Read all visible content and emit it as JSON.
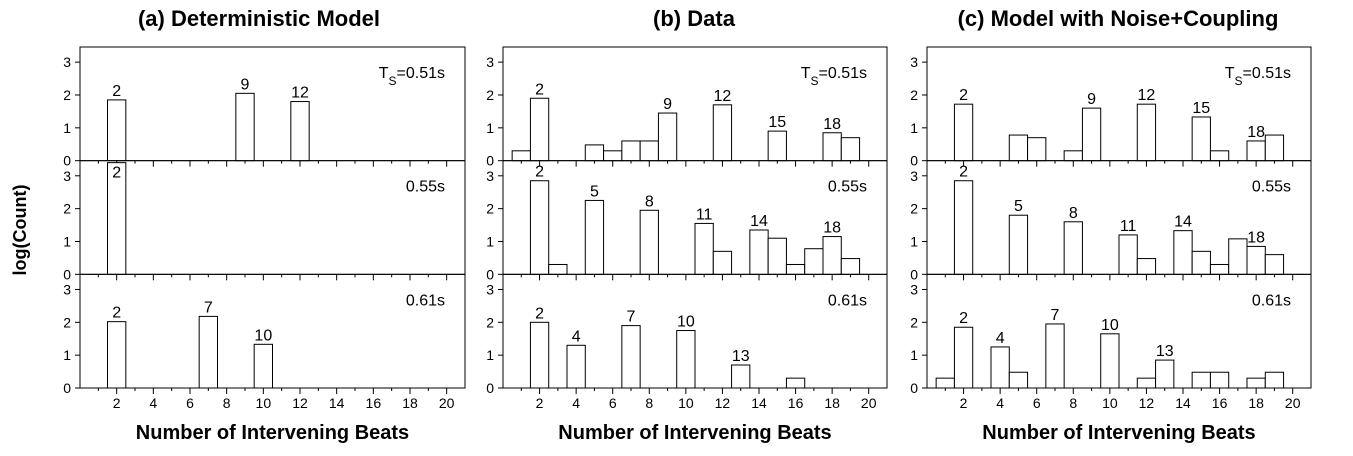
{
  "figure": {
    "ylabel": "log(Count)"
  },
  "chart_data": [
    {
      "type": "bar",
      "title": "(a) Deterministic Model",
      "xlabel": "Number of Intervening Beats",
      "ylabel": "log(Count)",
      "xlim": [
        0,
        21
      ],
      "xticks": [
        2,
        4,
        6,
        8,
        10,
        12,
        14,
        16,
        18,
        20
      ],
      "ylim": [
        0,
        3.4
      ],
      "yticks": [
        0,
        1,
        2,
        3
      ],
      "bar_width": 1,
      "panels": [
        {
          "ts_prefix": "T",
          "ts_sub": "S",
          "ts_value": "=0.51s",
          "x": [
            2,
            9,
            12
          ],
          "values": [
            1.85,
            2.05,
            1.8
          ],
          "annotations": [
            {
              "x": 2,
              "text": "2"
            },
            {
              "x": 9,
              "text": "9"
            },
            {
              "x": 12,
              "text": "12"
            }
          ]
        },
        {
          "ts_prefix": "",
          "ts_sub": "",
          "ts_value": "0.55s",
          "x": [
            2
          ],
          "values": [
            3.4
          ],
          "annotations": [
            {
              "x": 2,
              "text": "2",
              "inside": true
            }
          ]
        },
        {
          "ts_prefix": "",
          "ts_sub": "",
          "ts_value": "0.61s",
          "x": [
            2,
            7,
            10
          ],
          "values": [
            2.02,
            2.18,
            1.33
          ],
          "annotations": [
            {
              "x": 2,
              "text": "2"
            },
            {
              "x": 7,
              "text": "7"
            },
            {
              "x": 10,
              "text": "10"
            }
          ]
        }
      ]
    },
    {
      "type": "bar",
      "title": "(b)  Data",
      "xlabel": "Number of Intervening Beats",
      "ylabel": "",
      "xlim": [
        0,
        21
      ],
      "xticks": [
        2,
        4,
        6,
        8,
        10,
        12,
        14,
        16,
        18,
        20
      ],
      "ylim": [
        0,
        3.4
      ],
      "yticks": [
        0,
        1,
        2,
        3
      ],
      "bar_width": 1,
      "panels": [
        {
          "ts_prefix": "T",
          "ts_sub": "S",
          "ts_value": "=0.51s",
          "x": [
            1,
            2,
            5,
            6,
            7,
            8,
            9,
            12,
            15,
            18,
            19
          ],
          "values": [
            0.3,
            1.9,
            0.48,
            0.3,
            0.6,
            0.6,
            1.45,
            1.7,
            0.9,
            0.85,
            0.7
          ],
          "annotations": [
            {
              "x": 2,
              "text": "2"
            },
            {
              "x": 9,
              "text": "9"
            },
            {
              "x": 12,
              "text": "12"
            },
            {
              "x": 15,
              "text": "15"
            },
            {
              "x": 18,
              "text": "18"
            }
          ]
        },
        {
          "ts_prefix": "",
          "ts_sub": "",
          "ts_value": "0.55s",
          "x": [
            2,
            3,
            5,
            8,
            11,
            12,
            14,
            15,
            16,
            17,
            18,
            19
          ],
          "values": [
            2.85,
            0.3,
            2.25,
            1.95,
            1.55,
            0.7,
            1.35,
            1.1,
            0.3,
            0.78,
            1.15,
            0.48
          ],
          "annotations": [
            {
              "x": 2,
              "text": "2"
            },
            {
              "x": 5,
              "text": "5"
            },
            {
              "x": 8,
              "text": "8"
            },
            {
              "x": 11,
              "text": "11"
            },
            {
              "x": 14,
              "text": "14"
            },
            {
              "x": 18,
              "text": "18"
            }
          ]
        },
        {
          "ts_prefix": "",
          "ts_sub": "",
          "ts_value": "0.61s",
          "x": [
            2,
            4,
            7,
            10,
            13,
            16
          ],
          "values": [
            2.0,
            1.3,
            1.9,
            1.75,
            0.7,
            0.3
          ],
          "annotations": [
            {
              "x": 2,
              "text": "2"
            },
            {
              "x": 4,
              "text": "4"
            },
            {
              "x": 7,
              "text": "7"
            },
            {
              "x": 10,
              "text": "10"
            },
            {
              "x": 13,
              "text": "13"
            }
          ]
        }
      ]
    },
    {
      "type": "bar",
      "title": "(c) Model with Noise+Coupling",
      "xlabel": "Number of Intervening Beats",
      "ylabel": "",
      "xlim": [
        0,
        21
      ],
      "xticks": [
        2,
        4,
        6,
        8,
        10,
        12,
        14,
        16,
        18,
        20
      ],
      "ylim": [
        0,
        3.4
      ],
      "yticks": [
        0,
        1,
        2,
        3
      ],
      "bar_width": 1,
      "panels": [
        {
          "ts_prefix": "T",
          "ts_sub": "S",
          "ts_value": "=0.51s",
          "x": [
            2,
            5,
            6,
            8,
            9,
            12,
            15,
            16,
            18,
            19
          ],
          "values": [
            1.72,
            0.78,
            0.7,
            0.3,
            1.6,
            1.72,
            1.33,
            0.3,
            0.6,
            0.78
          ],
          "annotations": [
            {
              "x": 2,
              "text": "2"
            },
            {
              "x": 9,
              "text": "9"
            },
            {
              "x": 12,
              "text": "12"
            },
            {
              "x": 15,
              "text": "15"
            },
            {
              "x": 18,
              "text": "18"
            }
          ]
        },
        {
          "ts_prefix": "",
          "ts_sub": "",
          "ts_value": "0.55s",
          "x": [
            2,
            5,
            8,
            11,
            12,
            14,
            15,
            16,
            17,
            18,
            19
          ],
          "values": [
            2.85,
            1.8,
            1.6,
            1.2,
            0.48,
            1.33,
            0.7,
            0.3,
            1.08,
            0.85,
            0.6
          ],
          "annotations": [
            {
              "x": 2,
              "text": "2"
            },
            {
              "x": 5,
              "text": "5"
            },
            {
              "x": 8,
              "text": "8"
            },
            {
              "x": 11,
              "text": "11"
            },
            {
              "x": 14,
              "text": "14"
            },
            {
              "x": 18,
              "text": "18"
            }
          ]
        },
        {
          "ts_prefix": "",
          "ts_sub": "",
          "ts_value": "0.61s",
          "x": [
            1,
            2,
            4,
            5,
            7,
            10,
            12,
            13,
            15,
            16,
            18,
            19
          ],
          "values": [
            0.3,
            1.85,
            1.25,
            0.48,
            1.95,
            1.65,
            0.3,
            0.85,
            0.48,
            0.48,
            0.3,
            0.48
          ],
          "annotations": [
            {
              "x": 2,
              "text": "2"
            },
            {
              "x": 4,
              "text": "4"
            },
            {
              "x": 7,
              "text": "7"
            },
            {
              "x": 10,
              "text": "10"
            },
            {
              "x": 13,
              "text": "13"
            }
          ]
        }
      ]
    }
  ]
}
